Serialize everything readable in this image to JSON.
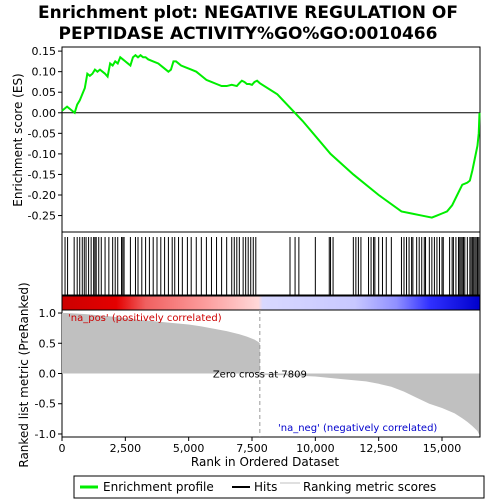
{
  "title_lines": [
    "Enrichment plot: NEGATIVE REGULATION OF",
    "PEPTIDASE ACTIVITY%GO%GO:0010466"
  ],
  "chart_data": {
    "type": "line",
    "x_max": 16500,
    "top": {
      "ylabel": "Enrichment score (ES)",
      "ylim": [
        -0.29,
        0.16
      ],
      "yticks": [
        0.15,
        0.1,
        0.05,
        0.0,
        -0.05,
        -0.1,
        -0.15,
        -0.2,
        -0.25
      ],
      "ytick_labels": [
        "0.15",
        "0.10",
        "0.05",
        "0.00",
        "-0.05",
        "-0.10",
        "-0.15",
        "-0.20",
        "-0.25"
      ],
      "es_x": [
        0,
        200,
        400,
        500,
        600,
        700,
        800,
        900,
        1000,
        1100,
        1200,
        1300,
        1400,
        1500,
        1600,
        1700,
        1800,
        1900,
        2000,
        2100,
        2200,
        2300,
        2400,
        2500,
        2600,
        2700,
        2800,
        2900,
        3000,
        3100,
        3200,
        3300,
        3400,
        3600,
        3800,
        4000,
        4200,
        4300,
        4400,
        4500,
        4600,
        4700,
        4900,
        5100,
        5300,
        5500,
        5700,
        5900,
        6100,
        6300,
        6500,
        6700,
        6900,
        7000,
        7100,
        7200,
        7300,
        7400,
        7500,
        7600,
        7700,
        7809,
        8500,
        9500,
        10600,
        11500,
        12500,
        13400,
        13800,
        14200,
        14600,
        14800,
        15000,
        15200,
        15400,
        15600,
        15800,
        16000,
        16100,
        16200,
        16300,
        16400,
        16450,
        16480
      ],
      "es_y": [
        0.005,
        0.015,
        0.005,
        0.0,
        0.02,
        0.03,
        0.045,
        0.06,
        0.095,
        0.09,
        0.095,
        0.105,
        0.1,
        0.105,
        0.1,
        0.095,
        0.088,
        0.12,
        0.115,
        0.125,
        0.12,
        0.135,
        0.13,
        0.125,
        0.12,
        0.115,
        0.135,
        0.14,
        0.135,
        0.14,
        0.135,
        0.135,
        0.13,
        0.125,
        0.12,
        0.11,
        0.1,
        0.105,
        0.125,
        0.125,
        0.12,
        0.115,
        0.11,
        0.105,
        0.1,
        0.09,
        0.08,
        0.075,
        0.07,
        0.065,
        0.065,
        0.068,
        0.065,
        0.072,
        0.078,
        0.075,
        0.07,
        0.07,
        0.068,
        0.075,
        0.078,
        0.072,
        0.045,
        -0.02,
        -0.1,
        -0.15,
        -0.2,
        -0.24,
        -0.245,
        -0.25,
        -0.255,
        -0.25,
        -0.245,
        -0.24,
        -0.225,
        -0.2,
        -0.175,
        -0.17,
        -0.165,
        -0.14,
        -0.11,
        -0.08,
        -0.05,
        0.0
      ]
    },
    "hits": [
      120,
      220,
      480,
      600,
      700,
      800,
      880,
      950,
      1050,
      1150,
      1250,
      1300,
      1350,
      1450,
      1550,
      1700,
      1850,
      2000,
      2100,
      2200,
      2350,
      2400,
      2450,
      2700,
      2900,
      3000,
      3150,
      3300,
      3450,
      3600,
      3750,
      3900,
      4050,
      4200,
      4350,
      4450,
      4600,
      4750,
      4950,
      5100,
      5300,
      5500,
      5700,
      5900,
      6100,
      6300,
      6500,
      6700,
      6800,
      6900,
      7000,
      7150,
      7250,
      7350,
      7450,
      7550,
      7650,
      9000,
      9200,
      9350,
      10000,
      10550,
      10600,
      10700,
      11500,
      11600,
      11700,
      11800,
      12100,
      12200,
      12300,
      12350,
      12500,
      12650,
      12800,
      13000,
      13400,
      13500,
      13600,
      13700,
      13800,
      13850,
      14000,
      14100,
      14200,
      14300,
      14350,
      14500,
      14600,
      14700,
      14800,
      14900,
      15000,
      15050,
      15300,
      15400,
      15450,
      15550,
      15650,
      15700,
      15750,
      15800,
      15850,
      15900,
      16000,
      16100,
      16150,
      16200,
      16250,
      16300,
      16350,
      16400,
      16450
    ],
    "bottom": {
      "ylabel": "Ranked list metric (PreRanked)",
      "xlabel": "Rank in Ordered Dataset",
      "ylim": [
        -1.05,
        1.05
      ],
      "yticks": [
        1.0,
        0.5,
        0.0,
        -0.5,
        -1.0
      ],
      "ytick_labels": [
        "1.0",
        "0.5",
        "0.0",
        "-0.5",
        "-1.0"
      ],
      "xticks": [
        0,
        2500,
        5000,
        7500,
        10000,
        12500,
        15000
      ],
      "xtick_labels": [
        "0",
        "2,500",
        "5,000",
        "7,500",
        "10,000",
        "12,500",
        "15,000"
      ],
      "metric_x": [
        0,
        200,
        1000,
        2000,
        3000,
        4000,
        5000,
        5500,
        6000,
        6500,
        7000,
        7300,
        7600,
        7750,
        7809,
        7810,
        9000,
        10000,
        11000,
        12000,
        12500,
        13000,
        13500,
        14000,
        14500,
        15000,
        15500,
        15800,
        16000,
        16200,
        16400,
        16480
      ],
      "metric_y": [
        1.0,
        1.0,
        0.98,
        0.94,
        0.89,
        0.85,
        0.81,
        0.78,
        0.74,
        0.7,
        0.65,
        0.61,
        0.56,
        0.52,
        0.5,
        -0.02,
        -0.03,
        -0.05,
        -0.09,
        -0.13,
        -0.17,
        -0.22,
        -0.3,
        -0.4,
        -0.5,
        -0.57,
        -0.66,
        -0.74,
        -0.8,
        -0.87,
        -0.95,
        -1.02
      ]
    },
    "zero_cross_label": "Zero cross at 7809",
    "zero_cross_x": 7809,
    "pos_label": "'na_pos' (positively correlated)",
    "neg_label": "'na_neg' (negatively correlated)"
  },
  "legend": {
    "items": [
      "Enrichment profile",
      "Hits",
      "Ranking metric scores"
    ]
  },
  "colors": {
    "es_line": "#00ee00",
    "hit": "#000000",
    "metric_fill": "#c0c0c0",
    "pos_text": "#cc0000",
    "neg_text": "#0000cc"
  }
}
